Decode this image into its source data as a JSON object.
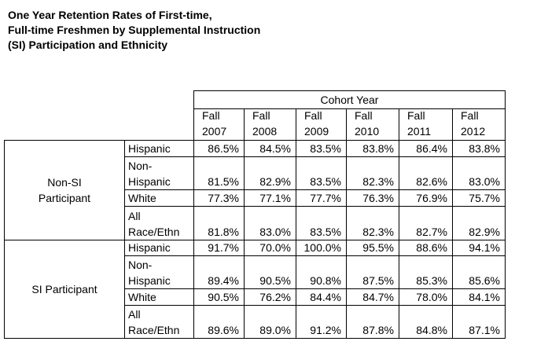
{
  "title": {
    "lines": [
      "One Year Retention Rates of First-time,",
      "Full-time Freshmen by Supplemental Instruction",
      "(SI) Participation and Ethnicity"
    ]
  },
  "table": {
    "header": "Cohort Year",
    "columns": [
      [
        "Fall",
        "2007"
      ],
      [
        "Fall",
        "2008"
      ],
      [
        "Fall",
        "2009"
      ],
      [
        "Fall",
        "2010"
      ],
      [
        "Fall",
        "2011"
      ],
      [
        "Fall",
        "2012"
      ]
    ],
    "groups": [
      {
        "label": [
          "Non-SI",
          "Participant"
        ],
        "rows": [
          {
            "label": [
              "Hispanic"
            ],
            "cells": [
              "86.5%",
              "84.5%",
              "83.5%",
              "83.8%",
              "86.4%",
              "83.8%"
            ]
          },
          {
            "label": [
              "Non-",
              "Hispanic"
            ],
            "cells": [
              "81.5%",
              "82.9%",
              "83.5%",
              "82.3%",
              "82.6%",
              "83.0%"
            ]
          },
          {
            "label": [
              "White"
            ],
            "cells": [
              "77.3%",
              "77.1%",
              "77.7%",
              "76.3%",
              "76.9%",
              "75.7%"
            ]
          },
          {
            "label": [
              "All",
              "Race/Ethn"
            ],
            "cells": [
              "81.8%",
              "83.0%",
              "83.5%",
              "82.3%",
              "82.7%",
              "82.9%"
            ]
          }
        ]
      },
      {
        "label": [
          "SI Participant"
        ],
        "rows": [
          {
            "label": [
              "Hispanic"
            ],
            "cells": [
              "91.7%",
              "70.0%",
              "100.0%",
              "95.5%",
              "88.6%",
              "94.1%"
            ]
          },
          {
            "label": [
              "Non-",
              "Hispanic"
            ],
            "cells": [
              "89.4%",
              "90.5%",
              "90.8%",
              "87.5%",
              "85.3%",
              "85.6%"
            ]
          },
          {
            "label": [
              "White"
            ],
            "cells": [
              "90.5%",
              "76.2%",
              "84.4%",
              "84.7%",
              "78.0%",
              "84.1%"
            ]
          },
          {
            "label": [
              "All",
              "Race/Ethn"
            ],
            "cells": [
              "89.6%",
              "89.0%",
              "91.2%",
              "87.8%",
              "84.8%",
              "87.1%"
            ]
          }
        ]
      }
    ]
  }
}
